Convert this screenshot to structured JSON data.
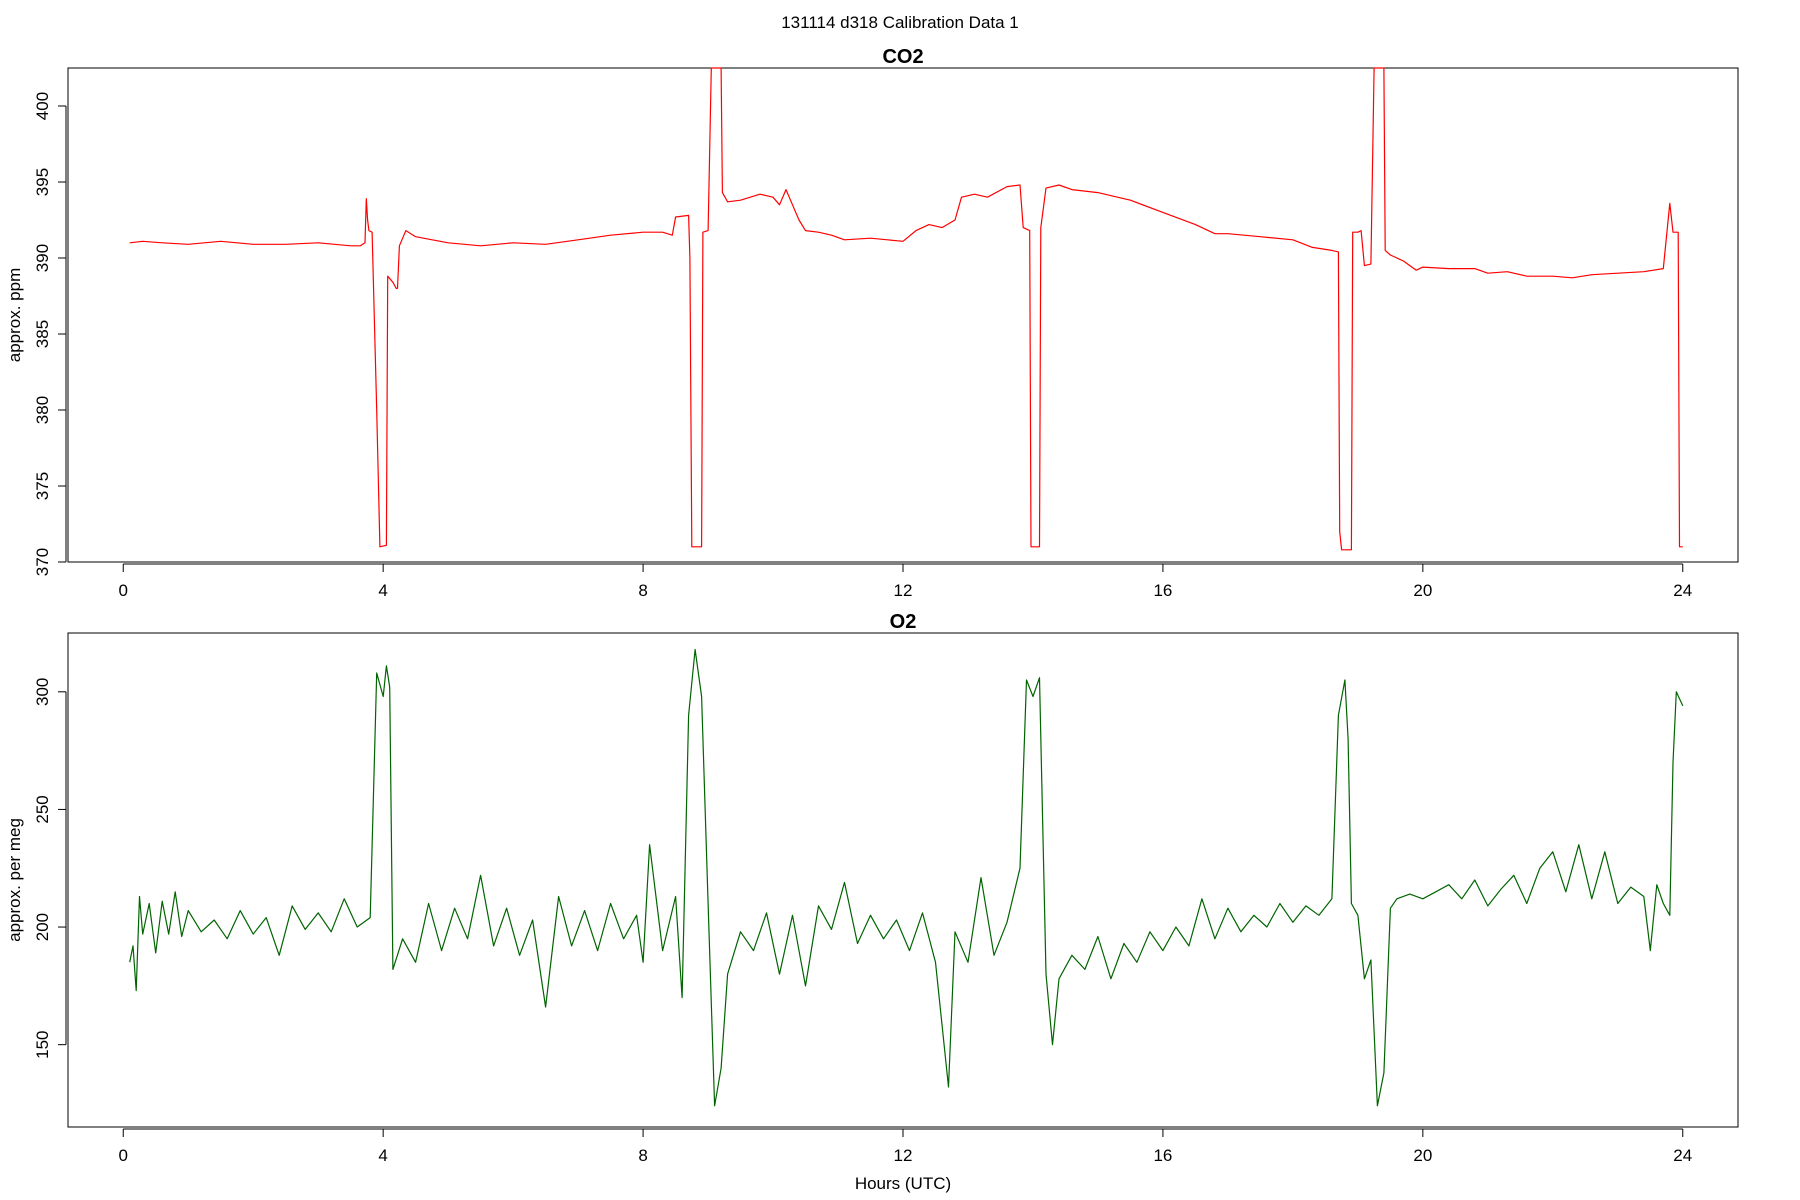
{
  "figure": {
    "title": "131114   d318   Calibration Data 1",
    "xlabel": "Hours (UTC)"
  },
  "chart_data": [
    {
      "type": "line",
      "title": "CO2",
      "xlabel": "",
      "ylabel": "approx. ppm",
      "xlim": [
        -0.85,
        24.85
      ],
      "ylim": [
        370,
        402.5
      ],
      "x_ticks": [
        0,
        4,
        8,
        12,
        16,
        20,
        24
      ],
      "y_ticks": [
        370,
        375,
        380,
        385,
        390,
        395,
        400
      ],
      "grid": false,
      "series": [
        {
          "color": "#ff0000",
          "points": [
            [
              0.1,
              391.0
            ],
            [
              0.3,
              391.1
            ],
            [
              0.6,
              391.0
            ],
            [
              1.0,
              390.9
            ],
            [
              1.5,
              391.1
            ],
            [
              2.0,
              390.9
            ],
            [
              2.5,
              390.9
            ],
            [
              3.0,
              391.0
            ],
            [
              3.5,
              390.8
            ],
            [
              3.65,
              390.8
            ],
            [
              3.72,
              391.0
            ],
            [
              3.74,
              393.9
            ],
            [
              3.76,
              392.5
            ],
            [
              3.78,
              391.8
            ],
            [
              3.83,
              391.7
            ],
            [
              3.9,
              380.0
            ],
            [
              3.95,
              371.0
            ],
            [
              4.05,
              371.1
            ],
            [
              4.07,
              388.8
            ],
            [
              4.15,
              388.4
            ],
            [
              4.2,
              388.0
            ],
            [
              4.22,
              388.0
            ],
            [
              4.25,
              390.8
            ],
            [
              4.32,
              391.5
            ],
            [
              4.35,
              391.8
            ],
            [
              4.5,
              391.4
            ],
            [
              5.0,
              391.0
            ],
            [
              5.5,
              390.8
            ],
            [
              6.0,
              391.0
            ],
            [
              6.5,
              390.9
            ],
            [
              7.0,
              391.2
            ],
            [
              7.5,
              391.5
            ],
            [
              8.0,
              391.7
            ],
            [
              8.3,
              391.7
            ],
            [
              8.45,
              391.5
            ],
            [
              8.5,
              392.7
            ],
            [
              8.7,
              392.8
            ],
            [
              8.72,
              390.0
            ],
            [
              8.75,
              371.0
            ],
            [
              8.85,
              371.0
            ],
            [
              8.9,
              371.0
            ],
            [
              8.92,
              391.7
            ],
            [
              9.0,
              391.8
            ],
            [
              9.05,
              402.5
            ],
            [
              9.2,
              402.5
            ],
            [
              9.22,
              394.3
            ],
            [
              9.3,
              393.7
            ],
            [
              9.5,
              393.8
            ],
            [
              9.8,
              394.2
            ],
            [
              10.0,
              394.0
            ],
            [
              10.1,
              393.5
            ],
            [
              10.2,
              394.5
            ],
            [
              10.3,
              393.5
            ],
            [
              10.4,
              392.5
            ],
            [
              10.5,
              391.8
            ],
            [
              10.7,
              391.7
            ],
            [
              10.9,
              391.5
            ],
            [
              11.1,
              391.2
            ],
            [
              11.5,
              391.3
            ],
            [
              12.0,
              391.1
            ],
            [
              12.2,
              391.8
            ],
            [
              12.4,
              392.2
            ],
            [
              12.6,
              392.0
            ],
            [
              12.8,
              392.5
            ],
            [
              12.9,
              394.0
            ],
            [
              13.1,
              394.2
            ],
            [
              13.3,
              394.0
            ],
            [
              13.6,
              394.7
            ],
            [
              13.8,
              394.8
            ],
            [
              13.85,
              392.0
            ],
            [
              13.95,
              391.8
            ],
            [
              13.97,
              371.0
            ],
            [
              14.1,
              371.0
            ],
            [
              14.12,
              392.0
            ],
            [
              14.2,
              394.6
            ],
            [
              14.4,
              394.8
            ],
            [
              14.6,
              394.5
            ],
            [
              15.0,
              394.3
            ],
            [
              15.5,
              393.8
            ],
            [
              16.0,
              393.0
            ],
            [
              16.5,
              392.2
            ],
            [
              16.8,
              391.6
            ],
            [
              17.0,
              391.6
            ],
            [
              17.5,
              391.4
            ],
            [
              18.0,
              391.2
            ],
            [
              18.3,
              390.7
            ],
            [
              18.6,
              390.5
            ],
            [
              18.7,
              390.4
            ],
            [
              18.72,
              372.0
            ],
            [
              18.75,
              370.8
            ],
            [
              18.85,
              370.8
            ],
            [
              18.9,
              370.8
            ],
            [
              18.92,
              391.7
            ],
            [
              19.0,
              391.7
            ],
            [
              19.05,
              391.8
            ],
            [
              19.1,
              389.5
            ],
            [
              19.2,
              389.6
            ],
            [
              19.25,
              402.5
            ],
            [
              19.4,
              402.5
            ],
            [
              19.42,
              390.5
            ],
            [
              19.5,
              390.2
            ],
            [
              19.7,
              389.8
            ],
            [
              19.9,
              389.2
            ],
            [
              20.0,
              389.4
            ],
            [
              20.4,
              389.3
            ],
            [
              20.8,
              389.3
            ],
            [
              21.0,
              389.0
            ],
            [
              21.3,
              389.1
            ],
            [
              21.6,
              388.8
            ],
            [
              22.0,
              388.8
            ],
            [
              22.3,
              388.7
            ],
            [
              22.6,
              388.9
            ],
            [
              23.0,
              389.0
            ],
            [
              23.4,
              389.1
            ],
            [
              23.7,
              389.3
            ],
            [
              23.8,
              393.6
            ],
            [
              23.85,
              391.7
            ],
            [
              23.93,
              391.7
            ],
            [
              23.95,
              371.0
            ],
            [
              24.0,
              371.0
            ]
          ]
        }
      ]
    },
    {
      "type": "line",
      "title": "O2",
      "xlabel": "Hours (UTC)",
      "ylabel": "approx. per meg",
      "xlim": [
        -0.85,
        24.85
      ],
      "ylim": [
        115,
        325
      ],
      "x_ticks": [
        0,
        4,
        8,
        12,
        16,
        20,
        24
      ],
      "y_ticks": [
        150,
        200,
        250,
        300
      ],
      "grid": false,
      "series": [
        {
          "color": "#006400",
          "points": [
            [
              0.1,
              185
            ],
            [
              0.15,
              192
            ],
            [
              0.2,
              173
            ],
            [
              0.25,
              213
            ],
            [
              0.3,
              197
            ],
            [
              0.4,
              210
            ],
            [
              0.5,
              189
            ],
            [
              0.6,
              211
            ],
            [
              0.7,
              197
            ],
            [
              0.8,
              215
            ],
            [
              0.9,
              196
            ],
            [
              1.0,
              207
            ],
            [
              1.2,
              198
            ],
            [
              1.4,
              203
            ],
            [
              1.6,
              195
            ],
            [
              1.8,
              207
            ],
            [
              2.0,
              197
            ],
            [
              2.2,
              204
            ],
            [
              2.4,
              188
            ],
            [
              2.6,
              209
            ],
            [
              2.8,
              199
            ],
            [
              3.0,
              206
            ],
            [
              3.2,
              198
            ],
            [
              3.4,
              212
            ],
            [
              3.6,
              200
            ],
            [
              3.8,
              204
            ],
            [
              3.9,
              308
            ],
            [
              4.0,
              298
            ],
            [
              4.05,
              311
            ],
            [
              4.1,
              302
            ],
            [
              4.15,
              182
            ],
            [
              4.3,
              195
            ],
            [
              4.5,
              185
            ],
            [
              4.7,
              210
            ],
            [
              4.9,
              190
            ],
            [
              5.1,
              208
            ],
            [
              5.3,
              195
            ],
            [
              5.5,
              222
            ],
            [
              5.7,
              192
            ],
            [
              5.9,
              208
            ],
            [
              6.1,
              188
            ],
            [
              6.3,
              203
            ],
            [
              6.5,
              166
            ],
            [
              6.7,
              213
            ],
            [
              6.9,
              192
            ],
            [
              7.1,
              207
            ],
            [
              7.3,
              190
            ],
            [
              7.5,
              210
            ],
            [
              7.7,
              195
            ],
            [
              7.9,
              205
            ],
            [
              8.0,
              185
            ],
            [
              8.1,
              235
            ],
            [
              8.3,
              190
            ],
            [
              8.5,
              213
            ],
            [
              8.6,
              170
            ],
            [
              8.7,
              290
            ],
            [
              8.8,
              318
            ],
            [
              8.9,
              298
            ],
            [
              9.0,
              210
            ],
            [
              9.1,
              124
            ],
            [
              9.2,
              140
            ],
            [
              9.3,
              180
            ],
            [
              9.5,
              198
            ],
            [
              9.7,
              190
            ],
            [
              9.9,
              206
            ],
            [
              10.1,
              180
            ],
            [
              10.3,
              205
            ],
            [
              10.5,
              175
            ],
            [
              10.7,
              209
            ],
            [
              10.9,
              199
            ],
            [
              11.1,
              219
            ],
            [
              11.3,
              193
            ],
            [
              11.5,
              205
            ],
            [
              11.7,
              195
            ],
            [
              11.9,
              203
            ],
            [
              12.1,
              190
            ],
            [
              12.3,
              206
            ],
            [
              12.5,
              185
            ],
            [
              12.7,
              132
            ],
            [
              12.8,
              198
            ],
            [
              13.0,
              185
            ],
            [
              13.2,
              221
            ],
            [
              13.4,
              188
            ],
            [
              13.6,
              202
            ],
            [
              13.8,
              225
            ],
            [
              13.9,
              305
            ],
            [
              14.0,
              298
            ],
            [
              14.1,
              306
            ],
            [
              14.2,
              180
            ],
            [
              14.3,
              150
            ],
            [
              14.4,
              178
            ],
            [
              14.6,
              188
            ],
            [
              14.8,
              182
            ],
            [
              15.0,
              196
            ],
            [
              15.2,
              178
            ],
            [
              15.4,
              193
            ],
            [
              15.6,
              185
            ],
            [
              15.8,
              198
            ],
            [
              16.0,
              190
            ],
            [
              16.2,
              200
            ],
            [
              16.4,
              192
            ],
            [
              16.6,
              212
            ],
            [
              16.8,
              195
            ],
            [
              17.0,
              208
            ],
            [
              17.2,
              198
            ],
            [
              17.4,
              205
            ],
            [
              17.6,
              200
            ],
            [
              17.8,
              210
            ],
            [
              18.0,
              202
            ],
            [
              18.2,
              209
            ],
            [
              18.4,
              205
            ],
            [
              18.6,
              212
            ],
            [
              18.7,
              290
            ],
            [
              18.8,
              305
            ],
            [
              18.85,
              280
            ],
            [
              18.9,
              210
            ],
            [
              19.0,
              205
            ],
            [
              19.1,
              178
            ],
            [
              19.2,
              186
            ],
            [
              19.3,
              124
            ],
            [
              19.4,
              138
            ],
            [
              19.5,
              208
            ],
            [
              19.6,
              212
            ],
            [
              19.8,
              214
            ],
            [
              20.0,
              212
            ],
            [
              20.2,
              215
            ],
            [
              20.4,
              218
            ],
            [
              20.6,
              212
            ],
            [
              20.8,
              220
            ],
            [
              21.0,
              209
            ],
            [
              21.2,
              216
            ],
            [
              21.4,
              222
            ],
            [
              21.6,
              210
            ],
            [
              21.8,
              225
            ],
            [
              22.0,
              232
            ],
            [
              22.2,
              215
            ],
            [
              22.4,
              235
            ],
            [
              22.6,
              212
            ],
            [
              22.8,
              232
            ],
            [
              23.0,
              210
            ],
            [
              23.2,
              217
            ],
            [
              23.4,
              213
            ],
            [
              23.5,
              190
            ],
            [
              23.6,
              218
            ],
            [
              23.7,
              210
            ],
            [
              23.8,
              205
            ],
            [
              23.85,
              270
            ],
            [
              23.9,
              300
            ],
            [
              24.0,
              294
            ]
          ]
        }
      ]
    }
  ]
}
